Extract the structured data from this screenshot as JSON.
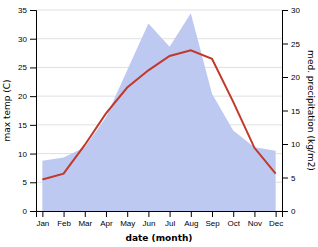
{
  "chart_data": {
    "type": "line",
    "categories": [
      "Jan",
      "Feb",
      "Mar",
      "Apr",
      "May",
      "Jun",
      "Jul",
      "Aug",
      "Sep",
      "Oct",
      "Nov",
      "Dec"
    ],
    "xlabel": "date (month)",
    "ylabel": "max temp (C)",
    "y2label": "med. precipitation (kg/m2)",
    "ylim": [
      0,
      35
    ],
    "yticks": [
      0,
      5,
      10,
      15,
      20,
      25,
      30,
      35
    ],
    "y2lim": [
      0,
      30
    ],
    "y2ticks": [
      0,
      5,
      10,
      15,
      20,
      25,
      30
    ],
    "grid": true,
    "series": [
      {
        "type": "area",
        "axis": "y2",
        "color": "#bdc9f0",
        "values": [
          7.5,
          8.0,
          9.5,
          14.0,
          21.0,
          28.0,
          24.5,
          29.5,
          17.5,
          12.0,
          9.5,
          9.0
        ]
      },
      {
        "type": "line",
        "color": "#c0392b",
        "values": [
          5.5,
          6.5,
          11.5,
          17.0,
          21.5,
          24.5,
          27.0,
          28.0,
          26.5,
          19.0,
          11.0,
          6.5
        ]
      }
    ]
  }
}
